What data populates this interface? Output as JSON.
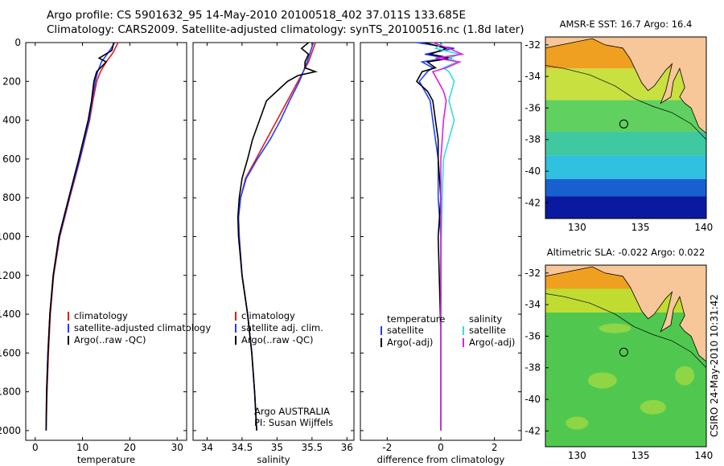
{
  "header": {
    "title_line1": "Argo profile: CS 5901632_95 14-May-2010 20100518_402 37.011S 133.685E",
    "title_line2": "Climatology: CARS2009. Satellite-adjusted climatology: synTS_20100516.nc (1.8d later)"
  },
  "colors": {
    "climatology": "#e41a1c",
    "satellite": "#1f3fff",
    "argo": "#000000",
    "cyan": "#33dddd",
    "magenta": "#e020e0",
    "land": "#f7c79a"
  },
  "chart_data": [
    {
      "type": "line",
      "id": "temperature",
      "xlabel": "temperature",
      "ylabel": "",
      "xlim": [
        -2,
        32
      ],
      "ylim": [
        2050,
        0
      ],
      "xticks": [
        0,
        10,
        20,
        30
      ],
      "yticks": [
        0,
        200,
        400,
        600,
        800,
        1000,
        1200,
        1400,
        1600,
        1800,
        2000
      ],
      "legend": [
        "climatology",
        "satellite-adjusted climatology",
        "Argo(..raw -QC)"
      ],
      "series": [
        {
          "name": "climatology",
          "depth": [
            0,
            50,
            100,
            150,
            200,
            300,
            400,
            600,
            800,
            1000,
            1200,
            1400,
            1600,
            1800,
            2000
          ],
          "values": [
            17.5,
            16.5,
            15.0,
            13.8,
            13.0,
            12.2,
            11.5,
            9.5,
            7.3,
            5.2,
            3.9,
            3.2,
            2.8,
            2.5,
            2.3
          ]
        },
        {
          "name": "satellite-adjusted climatology",
          "depth": [
            0,
            50,
            100,
            150,
            200,
            300,
            400,
            600,
            800,
            1000,
            1200,
            1400,
            1600,
            1800,
            2000
          ],
          "values": [
            16.8,
            15.5,
            14.0,
            13.2,
            12.7,
            12.0,
            11.4,
            9.4,
            7.2,
            5.1,
            3.8,
            3.1,
            2.7,
            2.4,
            2.3
          ]
        },
        {
          "name": "Argo(..raw -QC)",
          "depth": [
            0,
            40,
            80,
            100,
            150,
            200,
            300,
            400,
            600,
            800,
            1000,
            1200,
            1400,
            1600,
            1800,
            2000
          ],
          "values": [
            16.6,
            16.2,
            13.5,
            15.0,
            13.0,
            12.4,
            11.9,
            11.2,
            9.2,
            7.1,
            5.0,
            3.8,
            3.1,
            2.7,
            2.4,
            2.3
          ]
        }
      ]
    },
    {
      "type": "line",
      "id": "salinity",
      "xlabel": "salinity",
      "xlim": [
        33.8,
        36.1
      ],
      "ylim": [
        2050,
        0
      ],
      "xticks": [
        34,
        34.5,
        35,
        35.5,
        36
      ],
      "legend": [
        "climatology",
        "satellite adj. clim.",
        "Argo(..raw -QC)"
      ],
      "annotation": [
        "Argo AUSTRALIA",
        "PI: Susan Wijffels"
      ],
      "series": [
        {
          "name": "climatology",
          "depth": [
            0,
            100,
            200,
            300,
            400,
            500,
            600,
            700,
            800,
            900,
            1000,
            1200,
            1400,
            1600,
            1800,
            2000
          ],
          "values": [
            35.55,
            35.45,
            35.3,
            35.15,
            35.0,
            34.85,
            34.7,
            34.55,
            34.48,
            34.45,
            34.46,
            34.5,
            34.58,
            34.64,
            34.68,
            34.71
          ]
        },
        {
          "name": "satellite adj. clim.",
          "depth": [
            0,
            100,
            200,
            300,
            400,
            500,
            600,
            700,
            800,
            900,
            1000,
            1200,
            1400,
            1600,
            1800,
            2000
          ],
          "values": [
            35.52,
            35.43,
            35.32,
            35.18,
            35.05,
            34.9,
            34.72,
            34.56,
            34.48,
            34.45,
            34.46,
            34.5,
            34.58,
            34.64,
            34.68,
            34.71
          ]
        },
        {
          "name": "Argo(..raw -QC)",
          "depth": [
            0,
            30,
            60,
            100,
            130,
            150,
            170,
            200,
            250,
            300,
            400,
            500,
            600,
            700,
            800,
            900,
            1000,
            1200,
            1400,
            1600,
            1800,
            2000
          ],
          "values": [
            35.45,
            35.35,
            35.45,
            35.4,
            35.4,
            35.55,
            35.3,
            35.15,
            35.0,
            34.85,
            34.75,
            34.65,
            34.58,
            34.5,
            34.46,
            34.44,
            34.45,
            34.5,
            34.58,
            34.64,
            34.68,
            34.71
          ]
        }
      ]
    },
    {
      "type": "line",
      "id": "difference",
      "xlabel": "difference from climatology",
      "xlim": [
        -3,
        3
      ],
      "ylim": [
        2050,
        0
      ],
      "xticks": [
        -2,
        0,
        2
      ],
      "legend_left_title": "temperature",
      "legend_right_title": "salinity",
      "legend": [
        "satellite",
        "Argo(-adj)",
        "satellite",
        "Argo(-adj)"
      ],
      "series": [
        {
          "name": "temperature satellite",
          "depth": [
            0,
            30,
            60,
            80,
            100,
            130,
            150,
            200,
            250,
            300,
            400,
            500,
            600,
            800,
            1000,
            1500,
            2000
          ],
          "values": [
            -0.9,
            0.5,
            -0.6,
            0.2,
            -0.7,
            -0.3,
            -0.5,
            -0.8,
            -0.6,
            -0.4,
            -0.3,
            -0.2,
            -0.1,
            -0.1,
            0,
            0,
            0
          ]
        },
        {
          "name": "temperature Argo(-adj)",
          "depth": [
            0,
            30,
            60,
            80,
            100,
            130,
            150,
            200,
            250,
            300,
            400,
            500,
            600,
            800,
            1000,
            1500,
            2000
          ],
          "values": [
            -0.6,
            0.2,
            -0.4,
            0.4,
            -0.5,
            -0.2,
            -0.7,
            -0.9,
            -0.5,
            -0.3,
            -0.2,
            -0.1,
            -0.1,
            0,
            -0.1,
            0,
            0
          ]
        },
        {
          "name": "salinity satellite",
          "depth": [
            0,
            30,
            60,
            80,
            100,
            130,
            150,
            200,
            250,
            300,
            400,
            500,
            600,
            800,
            1000,
            1500,
            2000
          ],
          "values": [
            0.1,
            -0.2,
            0.7,
            0.3,
            0.6,
            0.1,
            0.3,
            0.5,
            0.4,
            0.3,
            0.5,
            0.3,
            0.1,
            0.05,
            0.02,
            0,
            0
          ]
        },
        {
          "name": "salinity Argo(-adj)",
          "depth": [
            0,
            30,
            60,
            80,
            100,
            130,
            150,
            200,
            250,
            300,
            400,
            500,
            600,
            800,
            1000,
            1500,
            2000
          ],
          "values": [
            -0.3,
            0.3,
            0.8,
            -0.2,
            0.7,
            0.2,
            -0.3,
            -0.1,
            0.1,
            0.2,
            0.1,
            0.05,
            0,
            0,
            0,
            0,
            0
          ]
        }
      ]
    },
    {
      "type": "heatmap",
      "id": "sst-map",
      "title": "AMSR-E SST: 16.7  Argo: 16.4",
      "xlim": [
        127.5,
        140.2
      ],
      "ylim": [
        -43,
        -31.5
      ],
      "xticks": [
        130,
        135,
        140
      ],
      "yticks": [
        -32,
        -34,
        -36,
        -38,
        -40,
        -42
      ],
      "marker": {
        "lon": 133.685,
        "lat": -37.011
      },
      "bands": [
        {
          "lat_top": -31.5,
          "lat_bottom": -33.5,
          "color": "#f0a020"
        },
        {
          "lat_top": -33.5,
          "lat_bottom": -35.5,
          "color": "#c8e040"
        },
        {
          "lat_top": -35.5,
          "lat_bottom": -37.5,
          "color": "#60d060"
        },
        {
          "lat_top": -37.5,
          "lat_bottom": -39.0,
          "color": "#40c8a0"
        },
        {
          "lat_top": -39.0,
          "lat_bottom": -40.5,
          "color": "#30c0e0"
        },
        {
          "lat_top": -40.5,
          "lat_bottom": -41.6,
          "color": "#1860d0"
        },
        {
          "lat_top": -41.6,
          "lat_bottom": -43.0,
          "color": "#0a1aa0"
        }
      ]
    },
    {
      "type": "heatmap",
      "id": "sla-map",
      "title": "Altimetric SLA: -0.022  Argo: 0.022",
      "xlim": [
        127.5,
        140.2
      ],
      "ylim": [
        -43,
        -31.5
      ],
      "xticks": [
        130,
        135,
        140
      ],
      "yticks": [
        -32,
        -34,
        -36,
        -38,
        -40,
        -42
      ],
      "marker": {
        "lon": 133.685,
        "lat": -37.011
      },
      "bands": [
        {
          "lat_top": -31.5,
          "lat_bottom": -33.0,
          "color": "#f0a020"
        },
        {
          "lat_top": -33.0,
          "lat_bottom": -34.5,
          "color": "#c0dc30"
        },
        {
          "lat_top": -34.5,
          "lat_bottom": -43.0,
          "color": "#50c850"
        }
      ]
    }
  ],
  "stamp": "CSIRO 24-May-2010 10:31:42"
}
